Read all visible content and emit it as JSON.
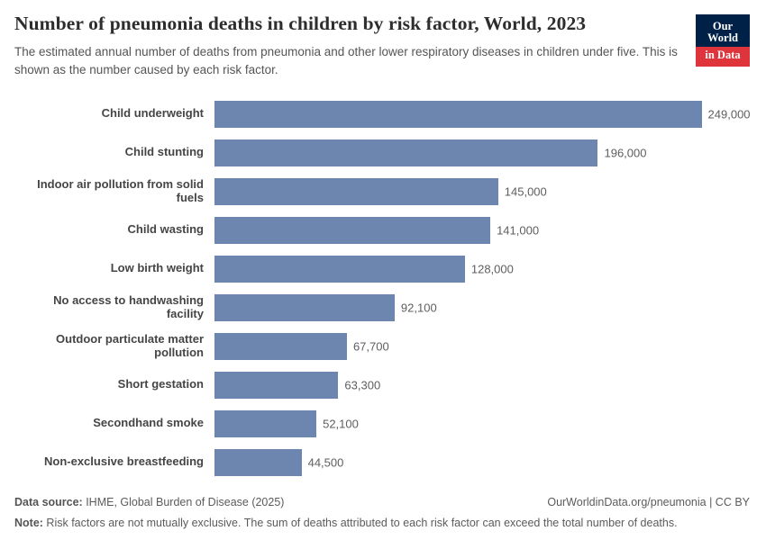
{
  "header": {
    "title": "Number of pneumonia deaths in children by risk factor, World, 2023",
    "subtitle": "The estimated annual number of deaths from pneumonia and other lower respiratory diseases in children under five. This is shown as the number caused by each risk factor.",
    "logo": {
      "line1": "Our World",
      "line2": "in Data",
      "bg_color": "#002147",
      "accent_color": "#e0343c"
    }
  },
  "chart_data": {
    "type": "bar",
    "orientation": "horizontal",
    "title": "Number of pneumonia deaths in children by risk factor, World, 2023",
    "xlabel": "",
    "ylabel": "",
    "grid": false,
    "legend": "none",
    "categories": [
      "Child underweight",
      "Child stunting",
      "Indoor air pollution from solid fuels",
      "Child wasting",
      "Low birth weight",
      "No access to handwashing facility",
      "Outdoor particulate matter pollution",
      "Short gestation",
      "Secondhand smoke",
      "Non-exclusive breastfeeding"
    ],
    "values": [
      249000,
      196000,
      145000,
      141000,
      128000,
      92100,
      67700,
      63300,
      52100,
      44500
    ],
    "value_labels": [
      "249,000",
      "196,000",
      "145,000",
      "141,000",
      "128,000",
      "92,100",
      "67,700",
      "63,300",
      "52,100",
      "44,500"
    ],
    "max_value": 249000,
    "xlim": [
      0,
      249000
    ],
    "bar_color": "#6c86b0"
  },
  "footer": {
    "source_label": "Data source:",
    "source_text": " IHME, Global Burden of Disease (2025)",
    "rights": "OurWorldinData.org/pneumonia | CC BY",
    "note_label": "Note:",
    "note_text": " Risk factors are not mutually exclusive. The sum of deaths attributed to each risk factor can exceed the total number of deaths."
  }
}
